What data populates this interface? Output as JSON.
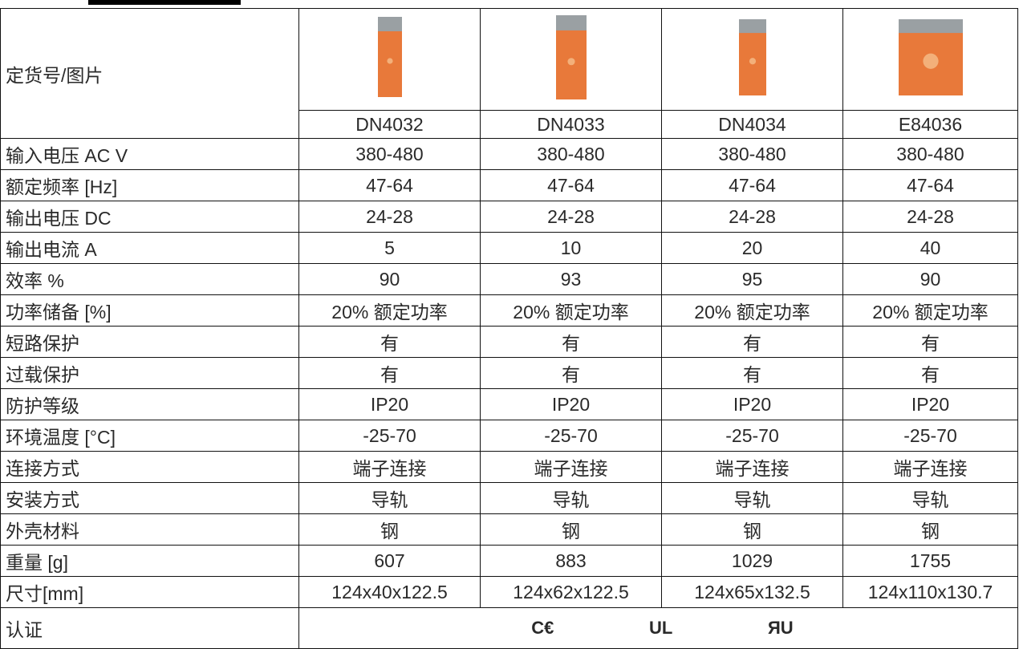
{
  "table": {
    "header_label": "定货号/图片",
    "models": [
      "DN4032",
      "DN4033",
      "DN4034",
      "E84036"
    ],
    "rows": [
      {
        "label": "输入电压  AC V",
        "cells": [
          "380-480",
          "380-480",
          "380-480",
          "380-480"
        ]
      },
      {
        "label": "额定频率 [Hz]",
        "cells": [
          "47-64",
          "47-64",
          "47-64",
          "47-64"
        ]
      },
      {
        "label": "输出电压 DC",
        "cells": [
          "24-28",
          "24-28",
          "24-28",
          "24-28"
        ]
      },
      {
        "label": "输出电流  A",
        "cells": [
          "5",
          "10",
          "20",
          "40"
        ]
      },
      {
        "label": "效率 %",
        "cells": [
          "90",
          "93",
          "95",
          "90"
        ]
      },
      {
        "label": "功率储备 [%]",
        "cells": [
          "20% 额定功率",
          "20% 额定功率",
          "20% 额定功率",
          "20% 额定功率"
        ]
      },
      {
        "label": "短路保护",
        "cells": [
          "有",
          "有",
          "有",
          "有"
        ]
      },
      {
        "label": "过载保护",
        "cells": [
          "有",
          "有",
          "有",
          "有"
        ]
      },
      {
        "label": "防护等级",
        "cells": [
          "IP20",
          "IP20",
          "IP20",
          "IP20"
        ]
      },
      {
        "label": "环境温度 [°C]",
        "cells": [
          "-25-70",
          "-25-70",
          "-25-70",
          "-25-70"
        ]
      },
      {
        "label": "连接方式",
        "cells": [
          "端子连接",
          "端子连接",
          "端子连接",
          "端子连接"
        ]
      },
      {
        "label": "安装方式",
        "cells": [
          "导轨",
          "导轨",
          "导轨",
          "导轨"
        ]
      },
      {
        "label": "外壳材料",
        "cells": [
          "钢",
          "钢",
          "钢",
          "钢"
        ]
      },
      {
        "label": "重量 [g]",
        "cells": [
          "607",
          "883",
          "1029",
          "1755"
        ]
      },
      {
        "label": "尺寸[mm]",
        "cells": [
          "124x40x122.5",
          "124x62x122.5",
          "124x65x132.5",
          "124x110x130.7"
        ]
      }
    ],
    "certification": {
      "label": "认证",
      "marks": [
        "C€",
        "UL",
        "ЯU"
      ]
    }
  }
}
